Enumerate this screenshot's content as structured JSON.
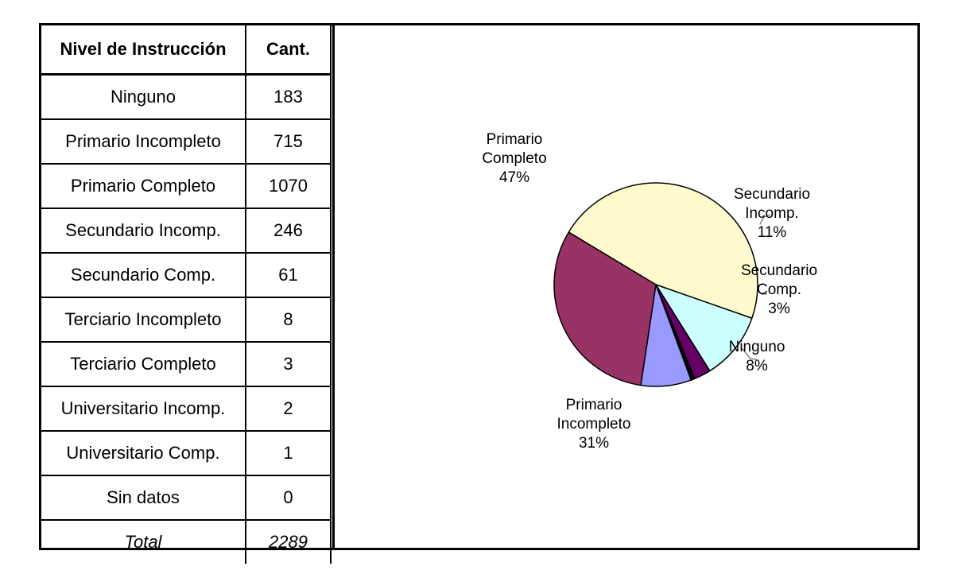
{
  "table": {
    "headers": [
      "Nivel de Instrucción",
      "Cant."
    ],
    "rows": [
      {
        "label": "Ninguno",
        "value": "183"
      },
      {
        "label": "Primario Incompleto",
        "value": "715"
      },
      {
        "label": "Primario Completo",
        "value": "1070"
      },
      {
        "label": "Secundario Incomp.",
        "value": "246"
      },
      {
        "label": "Secundario Comp.",
        "value": "61"
      },
      {
        "label": "Terciario Incompleto",
        "value": "8"
      },
      {
        "label": "Terciario Completo",
        "value": "3"
      },
      {
        "label": "Universitario Incomp.",
        "value": "2"
      },
      {
        "label": "Universitario Comp.",
        "value": "1"
      },
      {
        "label": "Sin datos",
        "value": "0"
      }
    ],
    "total": {
      "label": "Total",
      "value": "2289"
    }
  },
  "chart_data": {
    "type": "pie",
    "slices": [
      {
        "label": "Primario Completo",
        "value": 1070,
        "percent_label": "47%",
        "color": "#fffacd"
      },
      {
        "label": "Secundario Incomp.",
        "value": 246,
        "percent_label": "11%",
        "color": "#ccffff"
      },
      {
        "label": "Secundario Comp.",
        "value": 61,
        "percent_label": "3%",
        "color": "#660066"
      },
      {
        "label": "Terciario Incompleto",
        "value": 8,
        "percent_label": "",
        "color": "#000000"
      },
      {
        "label": "Terciario Completo",
        "value": 3,
        "percent_label": "",
        "color": "#000000"
      },
      {
        "label": "Universitario Incomp.",
        "value": 2,
        "percent_label": "",
        "color": "#000000"
      },
      {
        "label": "Universitario Comp.",
        "value": 1,
        "percent_label": "",
        "color": "#000000"
      },
      {
        "label": "Ninguno",
        "value": 183,
        "percent_label": "8%",
        "color": "#9999ff"
      },
      {
        "label": "Primario Incompleto",
        "value": 715,
        "percent_label": "31%",
        "color": "#993366"
      }
    ],
    "labels": [
      {
        "lines": [
          "Primario",
          "Completo",
          "47%"
        ]
      },
      {
        "lines": [
          "Secundario",
          "Incomp.",
          "11%"
        ]
      },
      {
        "lines": [
          "Secundario",
          "Comp.",
          "3%"
        ]
      },
      {
        "lines": [
          "Ninguno",
          "8%"
        ]
      },
      {
        "lines": [
          "Primario",
          "Incompleto",
          "31%"
        ]
      }
    ]
  }
}
